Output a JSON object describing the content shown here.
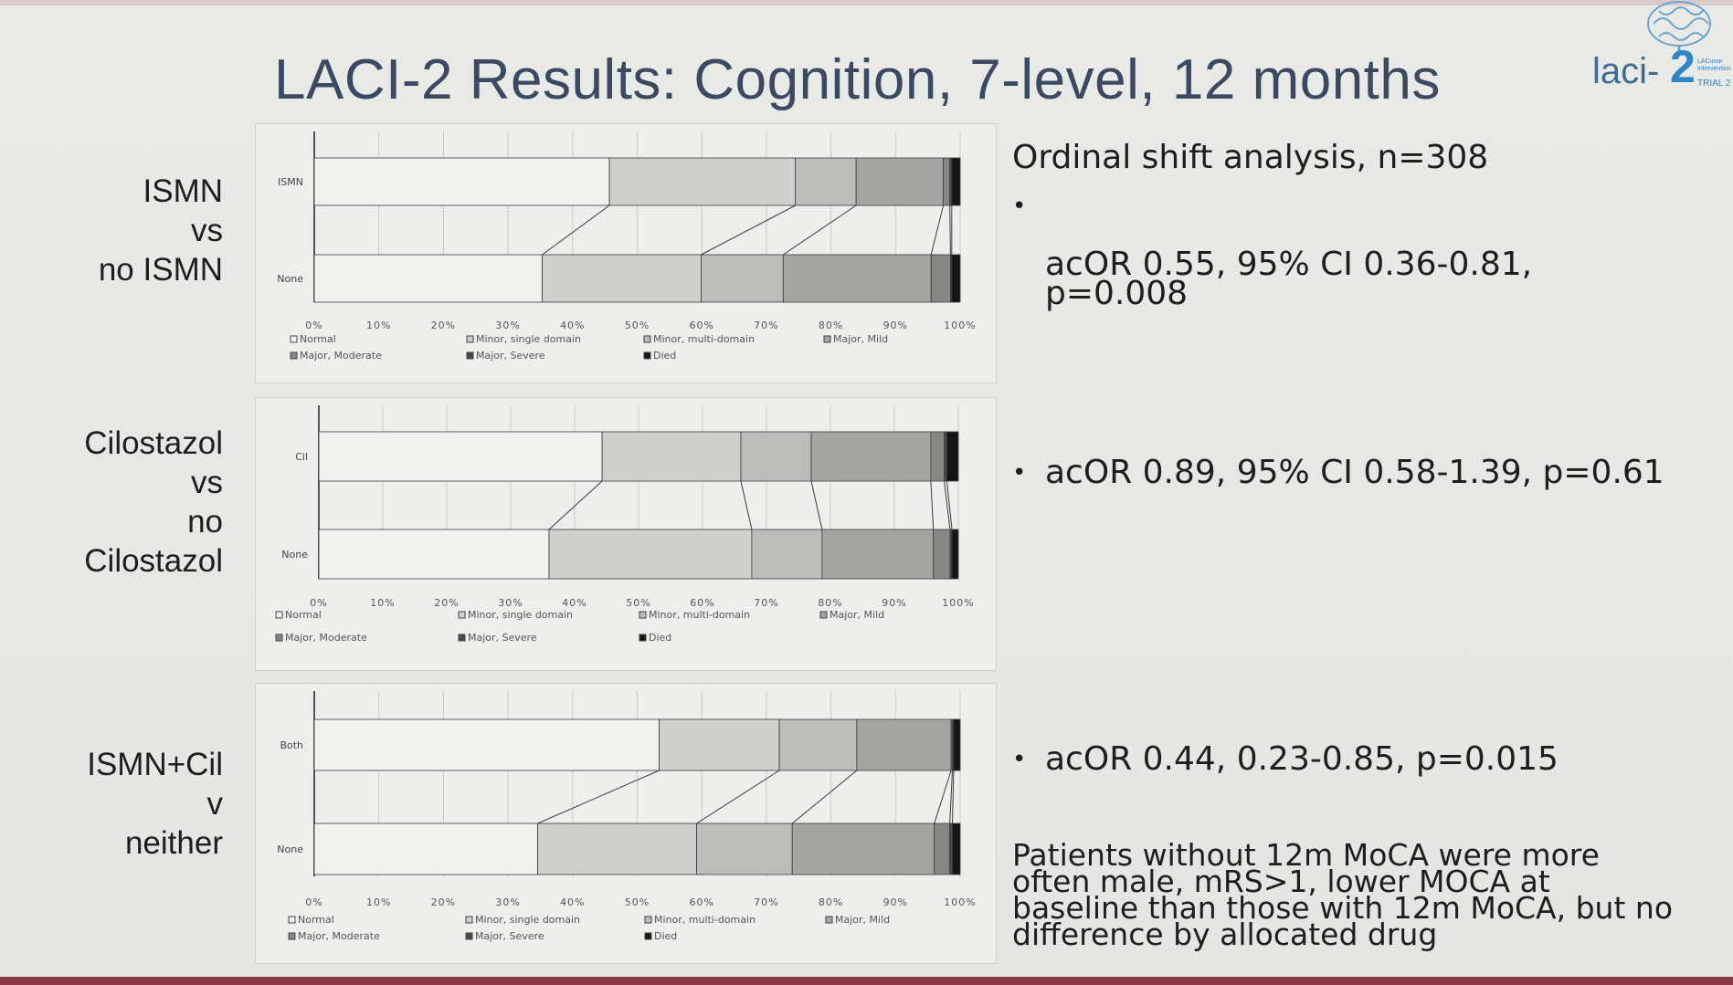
{
  "slide": {
    "title": "LACI-2 Results: Cognition, 7-level, 12 months",
    "logo": {
      "name": "laci-2 logo",
      "text": "laci-",
      "number": "2",
      "sub": "LACunar Intervention",
      "trial": "TRIAL 2"
    }
  },
  "legend_labels": [
    "Normal",
    "Minor, single domain",
    "Minor, multi-domain",
    "Major, Mild",
    "Major, Moderate",
    "Major, Severe",
    "Died"
  ],
  "segment_colors": [
    "#f1f1ee",
    "#cfd0cb",
    "#bcbdb8",
    "#a4a5a0",
    "#878884",
    "#494a47",
    "#151515"
  ],
  "rows": [
    {
      "label": "ISMN\nvs\nno ISMN"
    },
    {
      "label": "Cilostazol\nvs\nno\nCilostazol"
    },
    {
      "label": "ISMN+Cil\nv\nneither"
    }
  ],
  "right_panel": {
    "heading": "Ordinal shift analysis, n=308",
    "bullets": [
      "acOR 0.55, 95% CI 0.36-0.81,\np=0.008",
      "acOR 0.89, 95% CI 0.58-1.39, p=0.61",
      "acOR 0.44, 0.23-0.85, p=0.015"
    ],
    "note": "Patients without 12m MoCA were more\noften male, mRS>1, lower MOCA at\nbaseline than those with 12m MoCA, but no\ndifference by allocated drug"
  },
  "chart_data": [
    {
      "type": "bar",
      "orientation": "horizontal",
      "stacked": "100%",
      "categories": [
        "ISMN",
        "None"
      ],
      "series": [
        {
          "name": "Normal",
          "values": [
            45.7,
            35.3
          ]
        },
        {
          "name": "Minor, single domain",
          "values": [
            28.8,
            24.6
          ]
        },
        {
          "name": "Minor, multi-domain",
          "values": [
            9.4,
            12.7
          ]
        },
        {
          "name": "Major, Mild",
          "values": [
            13.5,
            22.9
          ]
        },
        {
          "name": "Major, Moderate",
          "values": [
            1.0,
            3.0
          ]
        },
        {
          "name": "Major, Severe",
          "values": [
            0.3,
            0.2
          ]
        },
        {
          "name": "Died",
          "values": [
            1.3,
            1.3
          ]
        }
      ],
      "xticks": [
        "0%",
        "10%",
        "20%",
        "30%",
        "40%",
        "50%",
        "60%",
        "70%",
        "80%",
        "90%",
        "100%"
      ],
      "xlim": [
        0,
        100
      ],
      "grid": true,
      "legend": "bottom"
    },
    {
      "type": "bar",
      "orientation": "horizontal",
      "stacked": "100%",
      "categories": [
        "Cil",
        "None"
      ],
      "series": [
        {
          "name": "Normal",
          "values": [
            44.3,
            36.0
          ]
        },
        {
          "name": "Minor, single domain",
          "values": [
            21.7,
            31.7
          ]
        },
        {
          "name": "Minor, multi-domain",
          "values": [
            11.0,
            11.0
          ]
        },
        {
          "name": "Major, Mild",
          "values": [
            18.7,
            17.4
          ]
        },
        {
          "name": "Major, Moderate",
          "values": [
            2.1,
            2.6
          ]
        },
        {
          "name": "Major, Severe",
          "values": [
            0.4,
            0.3
          ]
        },
        {
          "name": "Died",
          "values": [
            1.8,
            1.0
          ]
        }
      ],
      "xticks": [
        "0%",
        "10%",
        "20%",
        "30%",
        "40%",
        "50%",
        "60%",
        "70%",
        "80%",
        "90%",
        "100%"
      ],
      "xlim": [
        0,
        100
      ],
      "grid": true,
      "legend": "bottom"
    },
    {
      "type": "bar",
      "orientation": "horizontal",
      "stacked": "100%",
      "categories": [
        "Both",
        "None"
      ],
      "series": [
        {
          "name": "Normal",
          "values": [
            53.4,
            34.6
          ]
        },
        {
          "name": "Minor, single domain",
          "values": [
            18.6,
            24.6
          ]
        },
        {
          "name": "Minor, multi-domain",
          "values": [
            12.0,
            14.8
          ]
        },
        {
          "name": "Major, Mild",
          "values": [
            14.6,
            22.0
          ]
        },
        {
          "name": "Major, Moderate",
          "values": [
            0.2,
            2.4
          ]
        },
        {
          "name": "Major, Severe",
          "values": [
            0.2,
            0.4
          ]
        },
        {
          "name": "Died",
          "values": [
            1.0,
            1.2
          ]
        }
      ],
      "xticks": [
        "0%",
        "10%",
        "20%",
        "30%",
        "40%",
        "50%",
        "60%",
        "70%",
        "80%",
        "90%",
        "100%"
      ],
      "xlim": [
        0,
        100
      ],
      "grid": true,
      "legend": "bottom"
    }
  ]
}
